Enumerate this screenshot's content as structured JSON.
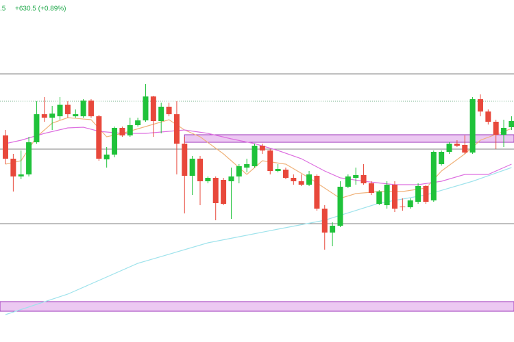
{
  "chart_data": {
    "type": "candlestick",
    "header": {
      "last": ".5",
      "change": "+630.5 (+0.89%)"
    },
    "ylim": [
      0,
      500
    ],
    "up_color": "#1fc23a",
    "down_color": "#e8483b",
    "open": [
      302,
      268,
      242,
      245,
      292,
      333,
      328,
      330,
      347,
      330,
      330,
      353,
      330,
      267,
      274,
      313,
      302,
      317,
      324,
      359,
      323,
      344,
      333,
      290,
      243,
      268,
      235,
      240,
      237,
      235,
      242,
      255,
      257,
      287,
      280,
      250,
      252,
      240,
      235,
      230,
      243,
      195,
      160,
      170,
      227,
      240,
      244,
      232,
      202,
      200,
      230,
      198,
      197,
      205,
      228,
      207,
      260,
      278,
      290,
      288,
      277,
      355,
      337,
      322,
      303,
      314
    ],
    "high": [
      310,
      275,
      280,
      300,
      352,
      358,
      345,
      358,
      352,
      340,
      355,
      355,
      332,
      285,
      315,
      315,
      328,
      328,
      377,
      360,
      350,
      350,
      352,
      300,
      272,
      272,
      242,
      242,
      240,
      255,
      260,
      268,
      290,
      290,
      282,
      260,
      255,
      245,
      245,
      250,
      245,
      200,
      175,
      235,
      245,
      255,
      260,
      235,
      222,
      235,
      235,
      210,
      210,
      232,
      230,
      280,
      280,
      292,
      295,
      302,
      358,
      362,
      340,
      325,
      325,
      330
    ],
    "low": [
      260,
      220,
      238,
      242,
      290,
      322,
      310,
      325,
      328,
      328,
      328,
      328,
      265,
      255,
      270,
      300,
      300,
      315,
      322,
      300,
      305,
      330,
      245,
      188,
      215,
      200,
      232,
      178,
      200,
      180,
      232,
      248,
      255,
      275,
      245,
      248,
      238,
      230,
      228,
      228,
      192,
      135,
      140,
      168,
      225,
      230,
      230,
      215,
      200,
      195,
      190,
      192,
      195,
      202,
      202,
      205,
      258,
      275,
      285,
      275,
      275,
      330,
      318,
      282,
      285,
      310
    ],
    "close": [
      268,
      242,
      245,
      292,
      333,
      328,
      334,
      347,
      333,
      333,
      353,
      330,
      268,
      274,
      313,
      302,
      317,
      324,
      359,
      323,
      344,
      333,
      290,
      243,
      268,
      235,
      240,
      203,
      202,
      242,
      257,
      260,
      287,
      280,
      250,
      253,
      240,
      235,
      230,
      245,
      195,
      160,
      170,
      227,
      242,
      244,
      232,
      218,
      220,
      230,
      195,
      197,
      207,
      228,
      205,
      278,
      278,
      290,
      287,
      277,
      355,
      337,
      322,
      303,
      313,
      323
    ],
    "series": [
      {
        "color": "#f0b27a",
        "x": [
          0,
          2,
          4,
          6,
          8,
          11,
          13,
          15,
          18,
          21,
          23,
          25,
          28,
          31,
          33,
          36,
          39,
          41,
          43,
          45,
          48,
          51,
          54,
          56,
          59,
          61,
          65
        ],
        "values": [
          260,
          265,
          300,
          320,
          328,
          325,
          300,
          305,
          315,
          325,
          310,
          300,
          275,
          245,
          265,
          260,
          240,
          225,
          210,
          217,
          220,
          220,
          225,
          250,
          275,
          295,
          312
        ]
      },
      {
        "color": "#dd6fe0",
        "x": [
          0,
          2,
          5,
          8,
          10,
          12,
          15,
          18,
          21,
          23,
          26,
          29,
          32,
          35,
          38,
          41,
          43,
          46,
          50,
          53,
          56,
          59,
          62,
          65
        ],
        "values": [
          290,
          295,
          305,
          313,
          314,
          308,
          305,
          305,
          308,
          310,
          305,
          297,
          290,
          280,
          268,
          250,
          240,
          235,
          230,
          230,
          235,
          245,
          245,
          260
        ]
      },
      {
        "color": "#9fe3ec",
        "x": [
          0,
          8,
          17,
          26,
          35,
          41,
          48,
          54,
          60,
          65
        ],
        "values": [
          40,
          70,
          115,
          145,
          165,
          178,
          203,
          215,
          235,
          255
        ]
      }
    ],
    "levels": [
      392,
      282,
      173
    ],
    "dotted_levels": [
      352
    ],
    "zones": [
      {
        "from": 292,
        "to": 303,
        "start_index": 23
      },
      {
        "from": 45,
        "to": 59,
        "start_index": 0
      }
    ]
  }
}
